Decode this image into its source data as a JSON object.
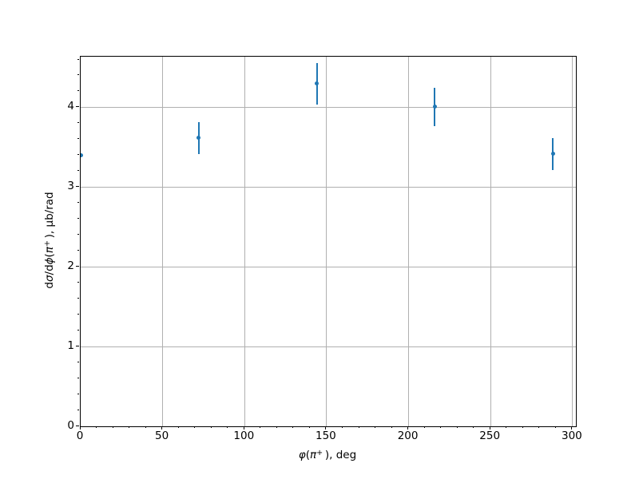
{
  "figure": {
    "background": "#ffffff"
  },
  "chart_data": {
    "type": "scatter",
    "title": "",
    "xlabel": "φ(π+), deg",
    "ylabel": "dσ/dϕ(π+), μb/rad",
    "xlabel_segments": [
      {
        "text": "φ",
        "italic": true,
        "sup": false
      },
      {
        "text": "(",
        "italic": false,
        "sup": false
      },
      {
        "text": "π",
        "italic": true,
        "sup": false
      },
      {
        "text": "+",
        "italic": false,
        "sup": true
      },
      {
        "text": " )",
        "italic": false,
        "sup": false
      },
      {
        "text": ", deg",
        "italic": false,
        "sup": false
      }
    ],
    "ylabel_segments": [
      {
        "text": "d",
        "italic": false,
        "sup": false
      },
      {
        "text": "σ",
        "italic": true,
        "sup": false
      },
      {
        "text": "/d",
        "italic": false,
        "sup": false
      },
      {
        "text": "ϕ",
        "italic": true,
        "sup": false
      },
      {
        "text": "(",
        "italic": false,
        "sup": false
      },
      {
        "text": "π",
        "italic": true,
        "sup": false
      },
      {
        "text": "+",
        "italic": false,
        "sup": true
      },
      {
        "text": " )",
        "italic": false,
        "sup": false
      },
      {
        "text": ", μb/rad",
        "italic": false,
        "sup": false
      }
    ],
    "xlim": [
      0,
      302
    ],
    "ylim": [
      0,
      4.64
    ],
    "x_major_ticks": [
      0,
      50,
      100,
      150,
      200,
      250,
      300
    ],
    "x_tick_labels": [
      "0",
      "50",
      "100",
      "150",
      "200",
      "250",
      "300"
    ],
    "x_minor_step": 10,
    "y_major_ticks": [
      0,
      1,
      2,
      3,
      4
    ],
    "y_tick_labels": [
      "0",
      "1",
      "2",
      "3",
      "4"
    ],
    "y_minor_step": 0.2,
    "grid": true,
    "legend": false,
    "series": [
      {
        "name": "cross-section-data",
        "marker_color": "#1f77b4",
        "points": [
          {
            "x": 0,
            "y": 3.4,
            "yerr": 0.02
          },
          {
            "x": 72,
            "y": 3.62,
            "yerr": 0.2
          },
          {
            "x": 144,
            "y": 4.3,
            "yerr": 0.26
          },
          {
            "x": 216,
            "y": 4.01,
            "yerr": 0.24
          },
          {
            "x": 288,
            "y": 3.42,
            "yerr": 0.2
          }
        ]
      }
    ],
    "colors": {
      "marker": "#1f77b4",
      "grid": "#b0b0b0",
      "spine": "#000000",
      "text": "#000000"
    }
  }
}
